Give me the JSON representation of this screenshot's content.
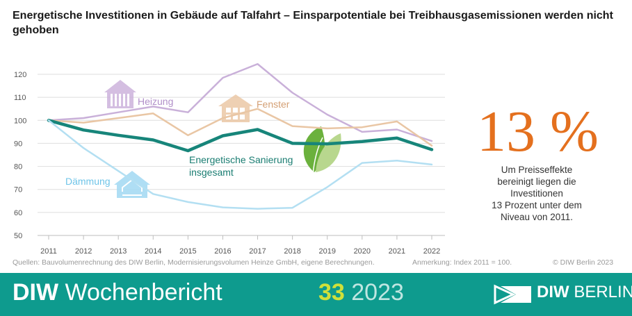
{
  "header": {
    "title": "Energetische Investitionen in Gebäude auf Talfahrt – Einsparpotentiale bei Treibhausgasemissionen werden nicht gehoben"
  },
  "chart_data": {
    "type": "line",
    "title": "Energetische Investitionen in Gebäude auf Talfahrt – Einsparpotentiale bei Treibhausgasemissionen werden nicht gehoben",
    "x": [
      2011,
      2012,
      2013,
      2014,
      2015,
      2016,
      2017,
      2018,
      2019,
      2020,
      2021,
      2022
    ],
    "ylim": [
      50,
      125
    ],
    "yticks": [
      50,
      60,
      70,
      80,
      90,
      100,
      110,
      120
    ],
    "grid": "horizontal",
    "series": [
      {
        "name": "Heizung",
        "color": "#c9b0d9",
        "width": 2.5,
        "values": [
          100,
          101,
          103.5,
          106,
          103.5,
          118.5,
          124.5,
          112,
          102.5,
          95,
          96,
          91
        ]
      },
      {
        "name": "Fenster",
        "color": "#e9c6a4",
        "width": 2.5,
        "values": [
          100,
          99,
          101,
          103,
          93.5,
          101,
          105,
          97.5,
          96.5,
          97,
          99.5,
          89
        ]
      },
      {
        "name": "Energetische Sanierung insgesamt",
        "color": "#17857a",
        "width": 4.5,
        "values": [
          100,
          95.8,
          93.5,
          91.5,
          86.8,
          93.3,
          96,
          90,
          89.8,
          90.8,
          92.3,
          87.3
        ]
      },
      {
        "name": "Dämmung",
        "color": "#b3dff2",
        "width": 2.5,
        "values": [
          100,
          88,
          78,
          68,
          64.5,
          62.2,
          61.6,
          62,
          71,
          81.5,
          82.5,
          80.8
        ]
      }
    ],
    "labels": {
      "heizung": "Heizung",
      "fenster": "Fenster",
      "gesamt_line1": "Energetische Sanierung",
      "gesamt_line2": "insgesamt",
      "daemmung": "Dämmung"
    },
    "annotation": {
      "value": "13 %",
      "text": "Um Preisseffekte\nbereinigt liegen die\nInvestitionen\n13 Prozent unter dem\nNiveau von 2011."
    }
  },
  "footer": {
    "sources": "Quellen: Bauvolumenrechnung des DIW Berlin, Modernisierungsvolumen Heinze GmbH, eigene Berechnungen.",
    "remark": "Anmerkung: Index 2011 = 100.",
    "copyright": "© DIW Berlin 2023"
  },
  "banner": {
    "brand_bold": "DIW",
    "brand_rest": " Wochenbericht",
    "issue_number": "33",
    "issue_year": " 2023",
    "logo_bold": "DIW",
    "logo_rest": " BERLIN",
    "bg_color": "#0e9b8e"
  },
  "icons": [
    "radiator-icon",
    "window-icon",
    "leaf-icon",
    "house-insulation-icon"
  ]
}
